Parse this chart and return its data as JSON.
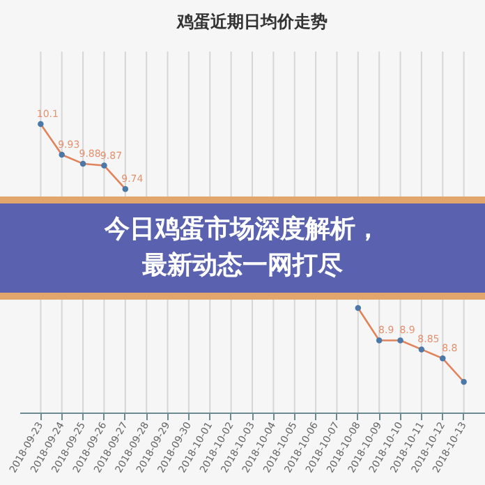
{
  "chart_data": {
    "type": "line",
    "title": "鸡蛋近期日均价走势",
    "categories": [
      "2018-09-23",
      "2018-09-24",
      "2018-09-25",
      "2018-09-26",
      "2018-09-27",
      "2018-09-28",
      "2018-09-29",
      "2018-09-30",
      "2018-10-01",
      "2018-10-02",
      "2018-10-03",
      "2018-10-04",
      "2018-10-05",
      "2018-10-06",
      "2018-10-07",
      "2018-10-08",
      "2018-10-09",
      "2018-10-10",
      "2018-10-11",
      "2018-10-12",
      "2018-10-13"
    ],
    "color": "#e0825a",
    "values": [
      10.1,
      9.93,
      9.88,
      9.87,
      9.74,
      null,
      null,
      null,
      null,
      null,
      null,
      null,
      null,
      null,
      null,
      9.08,
      8.9,
      8.9,
      8.85,
      8.8,
      8.67
    ],
    "value_labels": [
      "10.1",
      "9.93",
      "9.88",
      "9.87",
      "9.74",
      null,
      null,
      null,
      null,
      null,
      null,
      null,
      null,
      null,
      null,
      null,
      "8.9",
      "8.9",
      "8.85",
      "8.8",
      null
    ],
    "tick_labels": "x",
    "grid": "x",
    "marker": "circle",
    "annotations": [
      "今日鸡蛋市场深度解析，最新动态一网打尽"
    ]
  }
}
